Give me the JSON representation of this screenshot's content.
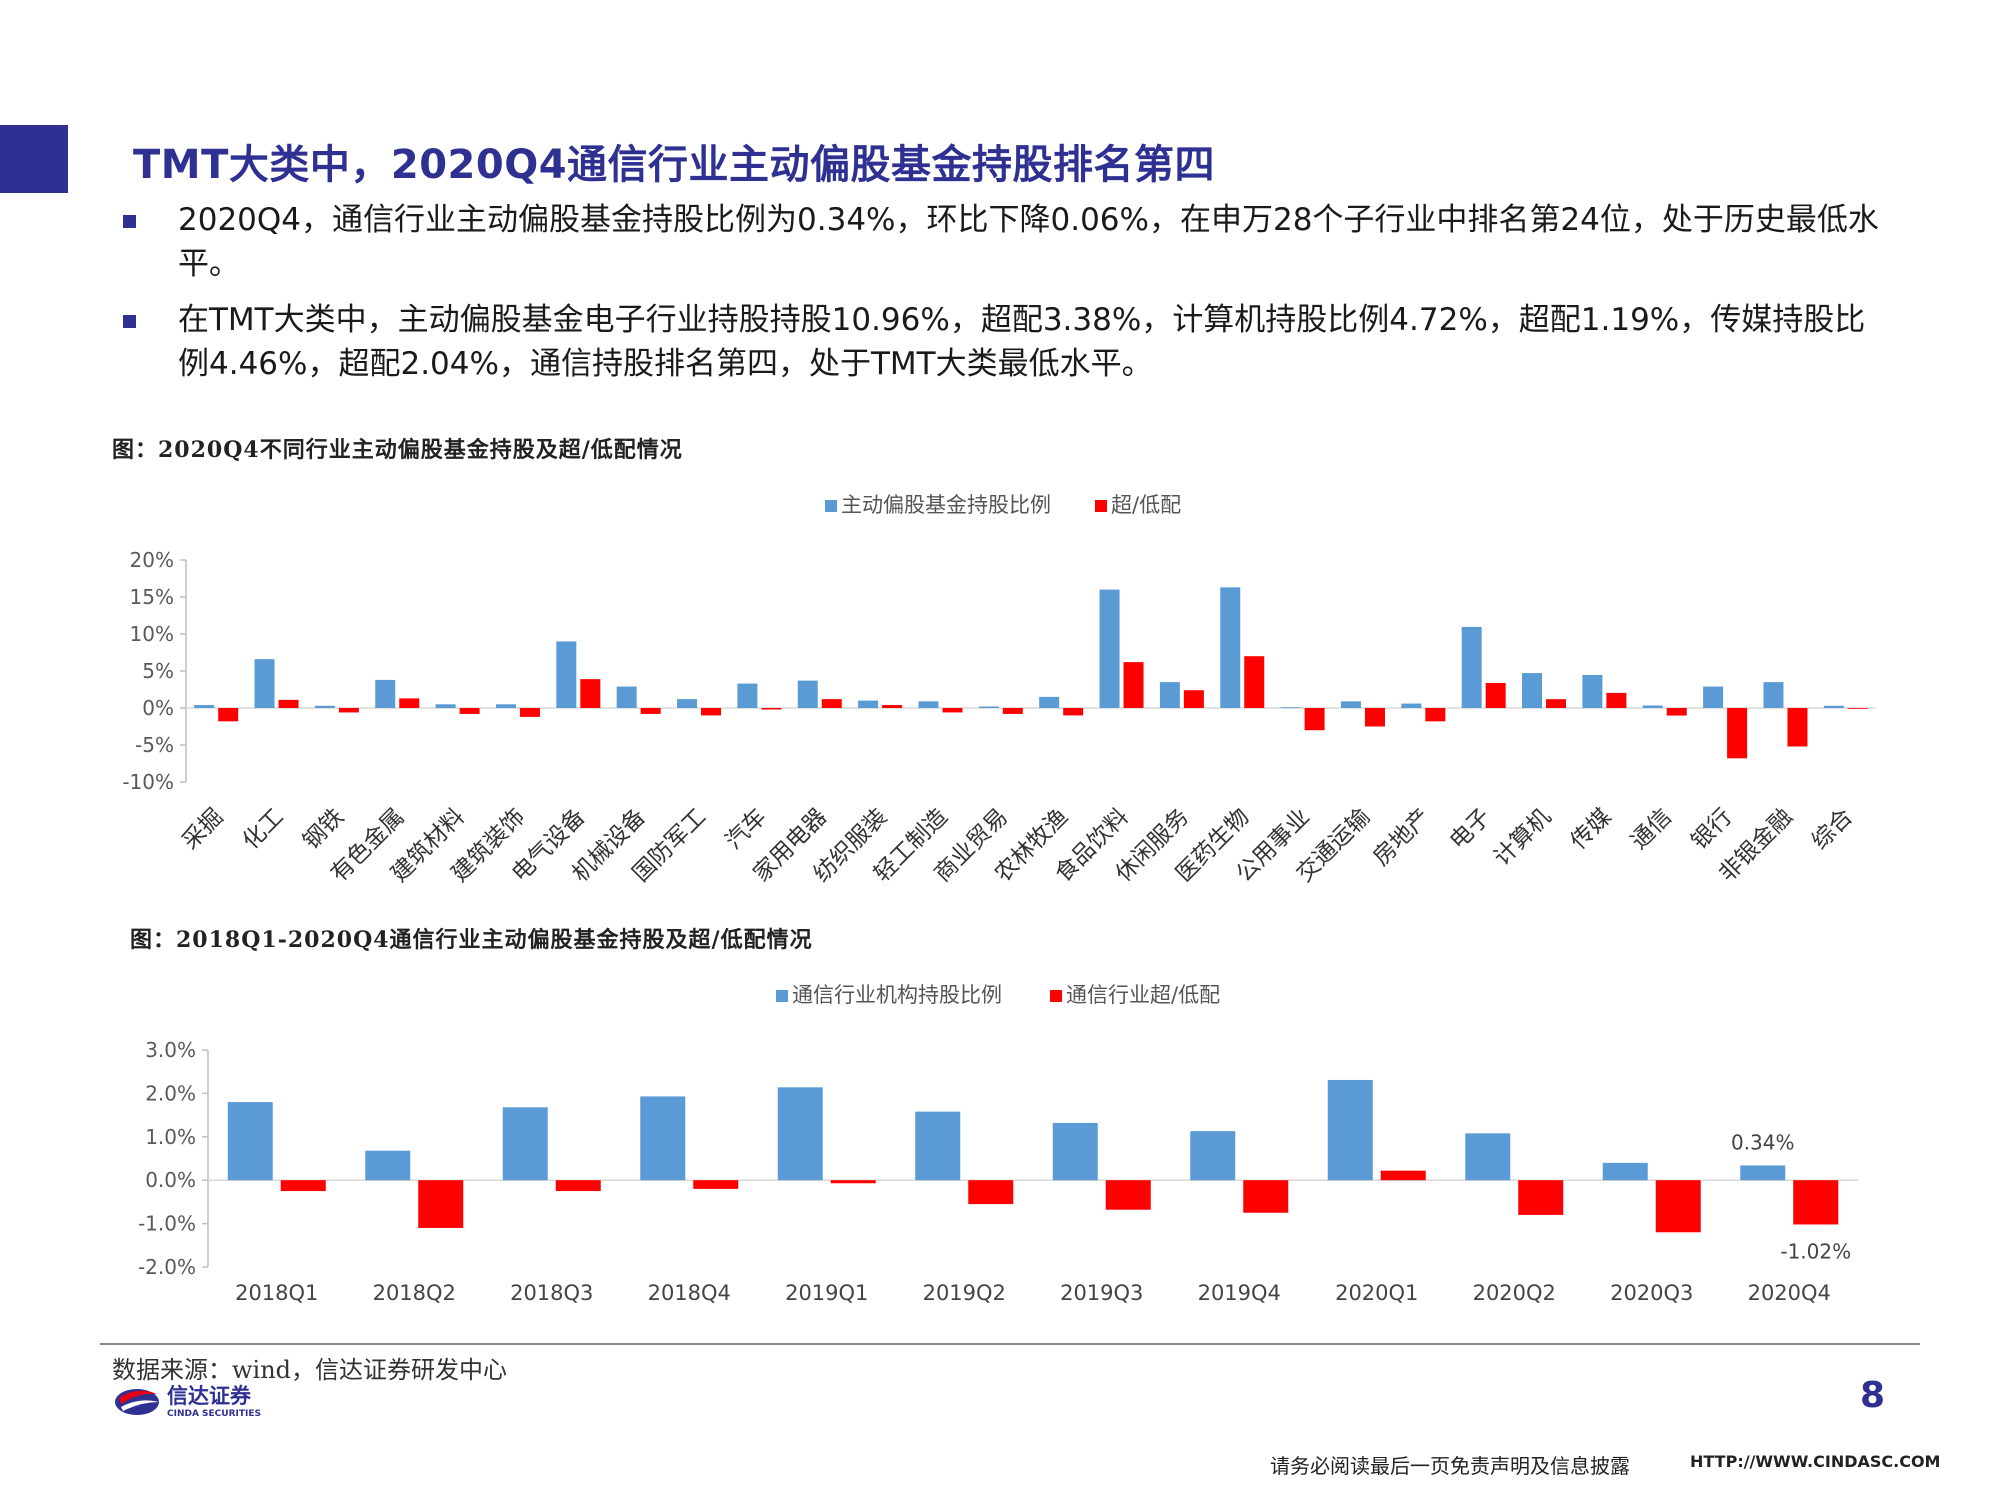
{
  "page": {
    "title": "TMT大类中，2020Q4通信行业主动偏股基金持股排名第四",
    "bullets": [
      "2020Q4，通信行业主动偏股基金持股比例为0.34%，环比下降0.06%，在申万28个子行业中排名第24位，处于历史最低水平。",
      "在TMT大类中，主动偏股基金电子行业持股持股10.96%，超配3.38%，计算机持股比例4.72%，超配1.19%，传媒持股比例4.46%，超配2.04%，通信持股排名第四，处于TMT大类最低水平。"
    ],
    "figure1_caption": "图：2020Q4不同行业主动偏股基金持股及超/低配情况",
    "figure2_caption": "图：2018Q1-2020Q4通信行业主动偏股基金持股及超/低配情况",
    "source": "数据来源：wind，信达证券研发中心",
    "logo_text": "信达证券",
    "logo_subtext": "CINDA SECURITIES",
    "page_number": "8",
    "footer_disclaimer": "请务必阅读最后一页免责声明及信息披露",
    "footer_url": "HTTP://WWW.CINDASC.COM",
    "colors": {
      "accent": "#2e3192",
      "blue_series": "#5b9bd5",
      "red_series": "#ff0000"
    }
  },
  "chart_data": [
    {
      "type": "bar",
      "categories": [
        "采掘",
        "化工",
        "钢铁",
        "有色金属",
        "建筑材料",
        "建筑装饰",
        "电气设备",
        "机械设备",
        "国防军工",
        "汽车",
        "家用电器",
        "纺织服装",
        "轻工制造",
        "商业贸易",
        "农林牧渔",
        "食品饮料",
        "休闲服务",
        "医药生物",
        "公用事业",
        "交通运输",
        "房地产",
        "电子",
        "计算机",
        "传媒",
        "通信",
        "银行",
        "非银金融",
        "综合"
      ],
      "series": [
        {
          "name": "主动偏股基金持股比例",
          "values": [
            0.4,
            6.6,
            0.3,
            3.8,
            0.5,
            0.5,
            9.0,
            2.9,
            1.2,
            3.3,
            3.7,
            1.0,
            0.9,
            0.2,
            1.5,
            16.0,
            3.5,
            16.3,
            0.1,
            0.9,
            0.6,
            10.96,
            4.72,
            4.46,
            0.34,
            2.9,
            3.5,
            0.3
          ]
        },
        {
          "name": "超/低配",
          "values": [
            -1.8,
            1.1,
            -0.6,
            1.3,
            -0.8,
            -1.2,
            3.9,
            -0.8,
            -1.0,
            -0.2,
            1.2,
            0.4,
            -0.6,
            -0.8,
            -1.0,
            6.2,
            2.4,
            7.0,
            -3.0,
            -2.5,
            -1.8,
            3.38,
            1.19,
            2.04,
            -1.02,
            -6.8,
            -5.2,
            0.0
          ]
        }
      ],
      "y_ticks": [
        "20%",
        "15%",
        "10%",
        "5%",
        "0%",
        "-5%",
        "-10%"
      ],
      "ylim": [
        -10,
        20
      ],
      "legend": "top-center"
    },
    {
      "type": "bar",
      "categories": [
        "2018Q1",
        "2018Q2",
        "2018Q3",
        "2018Q4",
        "2019Q1",
        "2019Q2",
        "2019Q3",
        "2019Q4",
        "2020Q1",
        "2020Q2",
        "2020Q3",
        "2020Q4"
      ],
      "series": [
        {
          "name": "通信行业机构持股比例",
          "values": [
            1.8,
            0.68,
            1.68,
            1.93,
            2.14,
            1.58,
            1.32,
            1.13,
            2.31,
            1.08,
            0.4,
            0.34
          ]
        },
        {
          "name": "通信行业超/低配",
          "values": [
            -0.25,
            -1.1,
            -0.25,
            -0.2,
            -0.07,
            -0.55,
            -0.68,
            -0.75,
            0.22,
            -0.8,
            -1.2,
            -1.02
          ]
        }
      ],
      "y_ticks": [
        "3.0%",
        "2.0%",
        "1.0%",
        "0.0%",
        "-1.0%",
        "-2.0%"
      ],
      "ylim": [
        -2,
        3
      ],
      "data_labels": {
        "blue_last": "0.34%",
        "red_last": "-1.02%"
      },
      "legend": "top-center"
    }
  ]
}
